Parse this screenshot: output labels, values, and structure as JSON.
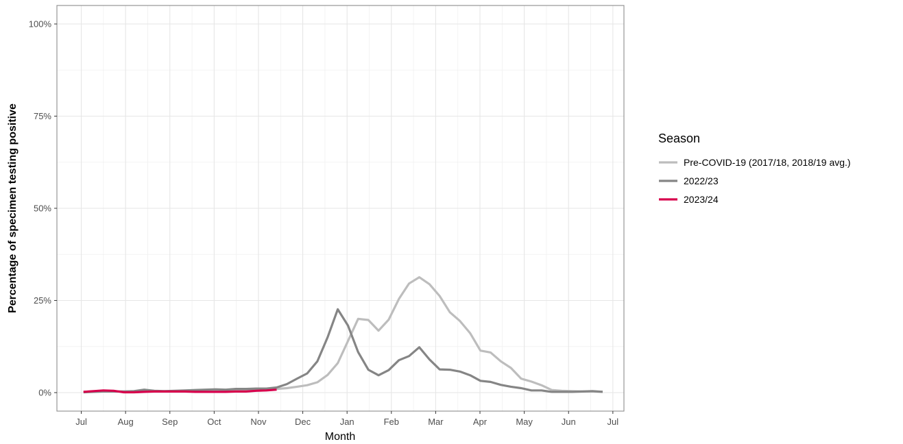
{
  "chart_data": {
    "type": "line",
    "xlabel": "Month",
    "ylabel": "Percentage of specimen testing positive",
    "ylim": [
      0,
      100
    ],
    "y_ticks": [
      0,
      25,
      50,
      75,
      100
    ],
    "y_tick_labels": [
      "0%",
      "25%",
      "50%",
      "75%",
      "100%"
    ],
    "x_range": [
      -0.55,
      12.25
    ],
    "x_ticks": [
      0,
      1,
      2,
      3,
      4,
      5,
      6,
      7,
      8,
      9,
      10,
      11,
      12
    ],
    "x_tick_labels": [
      "Jul",
      "Aug",
      "Sep",
      "Oct",
      "Nov",
      "Dec",
      "Jan",
      "Feb",
      "Mar",
      "Apr",
      "May",
      "Jun",
      "Jul"
    ],
    "grid": true,
    "legend": {
      "title": "Season",
      "position": "right",
      "entries": [
        "Pre-COVID-19 (2017/18, 2018/19 avg.)",
        "2022/23",
        "2023/24"
      ]
    },
    "series": [
      {
        "name": "Pre-COVID-19 (2017/18, 2018/19 avg.)",
        "color": "#bdbdbd",
        "x": [
          0.05,
          0.28,
          0.5,
          0.73,
          0.96,
          1.19,
          1.42,
          1.65,
          1.88,
          2.11,
          2.34,
          2.57,
          2.8,
          3.03,
          3.26,
          3.49,
          3.72,
          3.95,
          4.18,
          4.41,
          4.64,
          4.87,
          5.1,
          5.33,
          5.56,
          5.79,
          6.02,
          6.25,
          6.48,
          6.71,
          6.94,
          7.17,
          7.4,
          7.63,
          7.86,
          8.09,
          8.32,
          8.55,
          8.78,
          9.01,
          9.24,
          9.47,
          9.7,
          9.93,
          10.16,
          10.39,
          10.62,
          10.85,
          11.08,
          11.31,
          11.54,
          11.77
        ],
        "y": [
          0.2,
          0.3,
          0.3,
          0.3,
          0.3,
          0.3,
          0.3,
          0.3,
          0.4,
          0.4,
          0.4,
          0.5,
          0.5,
          0.6,
          0.6,
          0.7,
          0.8,
          0.8,
          0.9,
          1.0,
          1.2,
          1.6,
          2.0,
          2.8,
          4.8,
          8.0,
          14.0,
          20.0,
          19.7,
          16.8,
          19.8,
          25.4,
          29.6,
          31.3,
          29.4,
          26.2,
          21.8,
          19.4,
          16.1,
          11.4,
          10.9,
          8.5,
          6.7,
          3.8,
          3.0,
          2.0,
          0.7,
          0.5,
          0.4,
          0.3,
          0.3,
          0.2
        ]
      },
      {
        "name": "2022/23",
        "color": "#858585",
        "x": [
          0.05,
          0.28,
          0.5,
          0.73,
          0.96,
          1.19,
          1.42,
          1.65,
          1.88,
          2.11,
          2.34,
          2.57,
          2.8,
          3.03,
          3.26,
          3.49,
          3.72,
          3.95,
          4.18,
          4.41,
          4.64,
          4.87,
          5.1,
          5.33,
          5.56,
          5.79,
          6.02,
          6.25,
          6.48,
          6.71,
          6.94,
          7.17,
          7.4,
          7.63,
          7.86,
          8.09,
          8.32,
          8.55,
          8.78,
          9.01,
          9.24,
          9.47,
          9.7,
          9.93,
          10.16,
          10.39,
          10.62,
          10.85,
          11.08,
          11.31,
          11.54,
          11.77
        ],
        "y": [
          0.1,
          0.2,
          0.3,
          0.3,
          0.3,
          0.4,
          0.8,
          0.5,
          0.4,
          0.5,
          0.6,
          0.7,
          0.8,
          0.9,
          0.8,
          1.0,
          1.0,
          1.1,
          1.1,
          1.4,
          2.3,
          3.8,
          5.2,
          8.5,
          15.0,
          22.6,
          18.2,
          11.0,
          6.2,
          4.7,
          6.1,
          8.8,
          9.9,
          12.3,
          9.0,
          6.3,
          6.2,
          5.7,
          4.7,
          3.2,
          2.9,
          2.1,
          1.6,
          1.2,
          0.6,
          0.6,
          0.2,
          0.2,
          0.2,
          0.3,
          0.4,
          0.2
        ]
      },
      {
        "name": "2023/24",
        "color": "#d7004c",
        "x": [
          0.05,
          0.28,
          0.5,
          0.73,
          0.96,
          1.19,
          1.42,
          1.65,
          1.88,
          2.11,
          2.34,
          2.57,
          2.8,
          3.03,
          3.26,
          3.49,
          3.72,
          3.95,
          4.18,
          4.41
        ],
        "y": [
          0.2,
          0.4,
          0.6,
          0.5,
          0.1,
          0.1,
          0.2,
          0.3,
          0.3,
          0.3,
          0.3,
          0.2,
          0.2,
          0.2,
          0.2,
          0.3,
          0.3,
          0.5,
          0.6,
          0.8
        ]
      }
    ]
  }
}
